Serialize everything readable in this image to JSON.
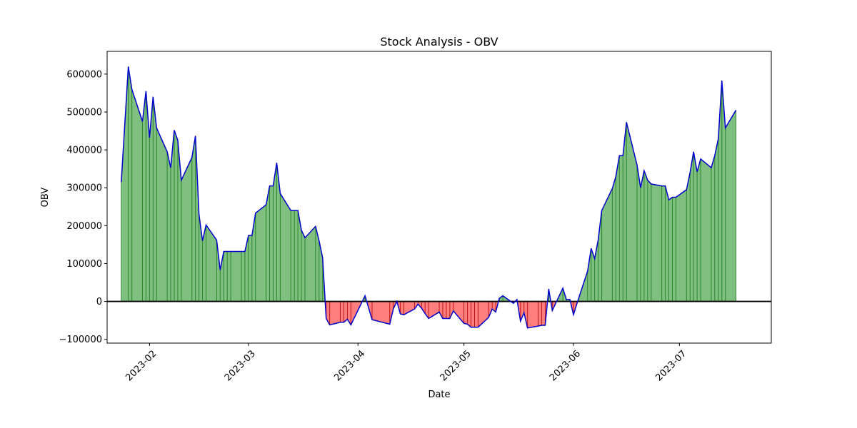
{
  "chart_data": {
    "type": "area",
    "title": "Stock Analysis - OBV",
    "xlabel": "Date",
    "ylabel": "OBV",
    "ylim": [
      -110000,
      660000
    ],
    "yticks": [
      -100000,
      0,
      100000,
      200000,
      300000,
      400000,
      500000,
      600000
    ],
    "ytick_labels": [
      "−100000",
      "0",
      "100000",
      "200000",
      "300000",
      "400000",
      "500000",
      "600000"
    ],
    "xlim": [
      "2023-01-20",
      "2023-07-27"
    ],
    "xticks": [
      "2023-02-01",
      "2023-03-01",
      "2023-04-01",
      "2023-05-01",
      "2023-06-01",
      "2023-07-01"
    ],
    "xtick_labels": [
      "2023-02",
      "2023-03",
      "2023-04",
      "2023-05",
      "2023-06",
      "2023-07"
    ],
    "colors": {
      "line": "#0000cc",
      "positive_fill": "#008000",
      "negative_fill": "#ff0000",
      "zero_line": "#000000"
    },
    "series": [
      {
        "name": "OBV",
        "x": [
          "2023-01-24",
          "2023-01-26",
          "2023-01-27",
          "2023-01-30",
          "2023-01-31",
          "2023-02-01",
          "2023-02-02",
          "2023-02-03",
          "2023-02-06",
          "2023-02-07",
          "2023-02-08",
          "2023-02-09",
          "2023-02-10",
          "2023-02-13",
          "2023-02-14",
          "2023-02-15",
          "2023-02-16",
          "2023-02-17",
          "2023-02-20",
          "2023-02-21",
          "2023-02-22",
          "2023-02-23",
          "2023-02-24",
          "2023-02-27",
          "2023-02-28",
          "2023-03-01",
          "2023-03-02",
          "2023-03-03",
          "2023-03-06",
          "2023-03-07",
          "2023-03-08",
          "2023-03-09",
          "2023-03-10",
          "2023-03-13",
          "2023-03-14",
          "2023-03-15",
          "2023-03-16",
          "2023-03-17",
          "2023-03-20",
          "2023-03-21",
          "2023-03-22",
          "2023-03-23",
          "2023-03-24",
          "2023-03-27",
          "2023-03-28",
          "2023-03-29",
          "2023-03-30",
          "2023-04-03",
          "2023-04-05",
          "2023-04-10",
          "2023-04-11",
          "2023-04-12",
          "2023-04-13",
          "2023-04-14",
          "2023-04-17",
          "2023-04-18",
          "2023-04-19",
          "2023-04-20",
          "2023-04-21",
          "2023-04-24",
          "2023-04-25",
          "2023-04-26",
          "2023-04-27",
          "2023-04-28",
          "2023-05-01",
          "2023-05-02",
          "2023-05-03",
          "2023-05-04",
          "2023-05-05",
          "2023-05-08",
          "2023-05-09",
          "2023-05-10",
          "2023-05-11",
          "2023-05-12",
          "2023-05-15",
          "2023-05-16",
          "2023-05-17",
          "2023-05-18",
          "2023-05-19",
          "2023-05-22",
          "2023-05-23",
          "2023-05-24",
          "2023-05-25",
          "2023-05-26",
          "2023-05-29",
          "2023-05-30",
          "2023-05-31",
          "2023-06-01",
          "2023-06-02",
          "2023-06-05",
          "2023-06-06",
          "2023-06-07",
          "2023-06-08",
          "2023-06-09",
          "2023-06-12",
          "2023-06-13",
          "2023-06-14",
          "2023-06-15",
          "2023-06-16",
          "2023-06-19",
          "2023-06-20",
          "2023-06-21",
          "2023-06-22",
          "2023-06-23",
          "2023-06-26",
          "2023-06-27",
          "2023-06-28",
          "2023-06-29",
          "2023-06-30",
          "2023-07-03",
          "2023-07-04",
          "2023-07-05",
          "2023-07-06",
          "2023-07-07",
          "2023-07-10",
          "2023-07-11",
          "2023-07-12",
          "2023-07-13",
          "2023-07-14",
          "2023-07-17"
        ],
        "values": [
          315000,
          620000,
          560000,
          475000,
          555000,
          432000,
          540000,
          458000,
          395000,
          353000,
          452000,
          425000,
          320000,
          380000,
          437000,
          230000,
          160000,
          202000,
          162000,
          83000,
          132000,
          132000,
          132000,
          132000,
          132000,
          174000,
          174000,
          233000,
          255000,
          305000,
          305000,
          366000,
          285000,
          240000,
          240000,
          240000,
          188000,
          168000,
          198000,
          160000,
          115000,
          -45000,
          -62000,
          -55000,
          -55000,
          -47000,
          -62000,
          15000,
          -48000,
          -60000,
          -20000,
          0,
          -33000,
          -35000,
          -20000,
          -7000,
          -18000,
          -32000,
          -45000,
          -28000,
          -45000,
          -45000,
          -45000,
          -25000,
          -58000,
          -60000,
          -68000,
          -68000,
          -68000,
          -42000,
          -20000,
          -28000,
          8000,
          15000,
          -5000,
          5000,
          -52000,
          -30000,
          -70000,
          -65000,
          -63000,
          -63000,
          33000,
          -24000,
          35000,
          5000,
          5000,
          -35000,
          -5000,
          80000,
          140000,
          113000,
          163000,
          240000,
          298000,
          330000,
          385000,
          385000,
          473000,
          360000,
          300000,
          345000,
          320000,
          310000,
          305000,
          305000,
          268000,
          275000,
          275000,
          295000,
          340000,
          395000,
          342000,
          376000,
          353000,
          385000,
          430000,
          583000,
          458000,
          505000
        ]
      }
    ]
  }
}
